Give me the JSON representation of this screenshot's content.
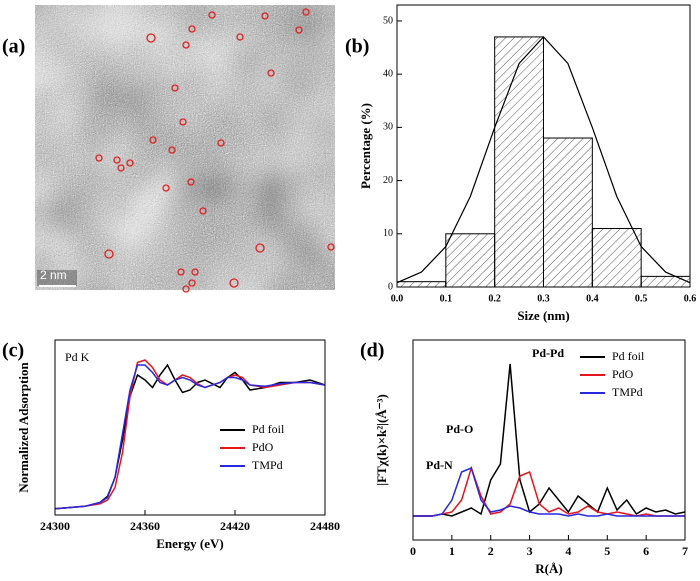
{
  "panel_labels": [
    "(a)",
    "(b)",
    "(c)",
    "(d)"
  ],
  "image": {
    "scale_bar": "2 nm"
  },
  "chart_data": [
    {
      "type": "histogram",
      "xlabel": "Size (nm)",
      "ylabel": "Percentage (%)",
      "bins": [
        0,
        0.1,
        0.2,
        0.3,
        0.4,
        0.5,
        0.6
      ],
      "counts": [
        1,
        10,
        47,
        28,
        11,
        2
      ],
      "color": "#000000",
      "fit": {
        "x": [
          0,
          0.05,
          0.1,
          0.15,
          0.2,
          0.25,
          0.3,
          0.35,
          0.4,
          0.45,
          0.5,
          0.55,
          0.6
        ],
        "values": [
          0.8,
          2.8,
          7.6,
          17,
          30,
          42,
          47,
          42,
          30,
          17,
          7.6,
          2.8,
          0.8
        ],
        "color": "#000000"
      },
      "xlim": [
        0,
        0.6
      ],
      "ylim": [
        0,
        53
      ],
      "xticks": [
        {
          "value": 0,
          "label": "0.0"
        },
        0.1,
        0.2,
        0.3,
        0.4,
        0.5,
        0.6
      ],
      "yticks": [
        0,
        10,
        20,
        30,
        40,
        50
      ]
    },
    {
      "type": "line",
      "xlabel": "Energy (eV)",
      "ylabel": "Normalized Adsorption",
      "annotations": [
        "Pd K"
      ],
      "x": [
        24300,
        24320,
        24330,
        24335,
        24340,
        24345,
        24350,
        24355,
        24360,
        24365,
        24370,
        24375,
        24380,
        24385,
        24390,
        24395,
        24400,
        24410,
        24415,
        24420,
        24425,
        24430,
        24440,
        24450,
        24460,
        24470,
        24480
      ],
      "series": [
        {
          "name": "Pd foil",
          "color": "#000000",
          "values": [
            0.05,
            0.07,
            0.1,
            0.15,
            0.3,
            0.6,
            0.95,
            1.12,
            1.08,
            1.02,
            1.12,
            1.2,
            1.08,
            0.98,
            1.0,
            1.06,
            1.08,
            1.02,
            1.1,
            1.14,
            1.08,
            1.0,
            1.02,
            1.06,
            1.06,
            1.08,
            1.04
          ]
        },
        {
          "name": "PdO",
          "color": "#e8141c",
          "values": [
            0.05,
            0.07,
            0.09,
            0.12,
            0.22,
            0.5,
            0.95,
            1.22,
            1.24,
            1.18,
            1.08,
            1.04,
            1.08,
            1.12,
            1.1,
            1.05,
            1.02,
            1.06,
            1.1,
            1.12,
            1.1,
            1.04,
            1.02,
            1.04,
            1.06,
            1.06,
            1.04
          ]
        },
        {
          "name": "TMPd",
          "color": "#2828e0",
          "values": [
            0.05,
            0.07,
            0.1,
            0.14,
            0.3,
            0.65,
            1.0,
            1.2,
            1.2,
            1.14,
            1.06,
            1.04,
            1.08,
            1.1,
            1.08,
            1.04,
            1.02,
            1.06,
            1.1,
            1.1,
            1.08,
            1.04,
            1.03,
            1.05,
            1.06,
            1.06,
            1.04
          ]
        }
      ],
      "xlim": [
        24300,
        24480
      ],
      "ylim": [
        0,
        1.4
      ],
      "xticks": [
        24300,
        24360,
        24420,
        24480
      ],
      "legend": "lower right"
    },
    {
      "type": "line",
      "xlabel": "R(Å)",
      "ylabel": "|FTχ(k)×k²|(Å⁻³)",
      "annotations": [
        "Pd-Pd",
        "Pd-O",
        "Pd-N"
      ],
      "x": [
        0,
        0.25,
        0.5,
        0.75,
        1,
        1.25,
        1.5,
        1.75,
        2,
        2.25,
        2.5,
        2.75,
        3,
        3.25,
        3.5,
        3.75,
        4,
        4.25,
        4.5,
        4.75,
        5,
        5.25,
        5.5,
        5.75,
        6,
        6.25,
        6.5,
        6.75,
        7
      ],
      "series": [
        {
          "name": "Pd foil",
          "color": "#000000",
          "values": [
            0.12,
            0.12,
            0.12,
            0.13,
            0.12,
            0.14,
            0.16,
            0.13,
            0.3,
            0.38,
            0.88,
            0.3,
            0.14,
            0.18,
            0.26,
            0.2,
            0.14,
            0.22,
            0.18,
            0.14,
            0.26,
            0.15,
            0.2,
            0.13,
            0.16,
            0.14,
            0.15,
            0.13,
            0.14
          ]
        },
        {
          "name": "PdO",
          "color": "#e8141c",
          "values": [
            0.12,
            0.12,
            0.12,
            0.13,
            0.14,
            0.2,
            0.36,
            0.22,
            0.13,
            0.14,
            0.18,
            0.32,
            0.34,
            0.18,
            0.14,
            0.16,
            0.13,
            0.14,
            0.17,
            0.14,
            0.13,
            0.14,
            0.13,
            0.12,
            0.13,
            0.12,
            0.12,
            0.12,
            0.12
          ]
        },
        {
          "name": "TMPd",
          "color": "#2828e0",
          "values": [
            0.12,
            0.12,
            0.12,
            0.13,
            0.2,
            0.34,
            0.36,
            0.2,
            0.14,
            0.15,
            0.17,
            0.16,
            0.14,
            0.13,
            0.13,
            0.13,
            0.12,
            0.13,
            0.12,
            0.12,
            0.13,
            0.12,
            0.12,
            0.12,
            0.12,
            0.12,
            0.12,
            0.12,
            0.12
          ]
        }
      ],
      "xlim": [
        0,
        7
      ],
      "ylim": [
        0,
        1
      ],
      "xticks": [
        0,
        1,
        2,
        3,
        4,
        5,
        6,
        7
      ],
      "legend": "upper right"
    }
  ]
}
